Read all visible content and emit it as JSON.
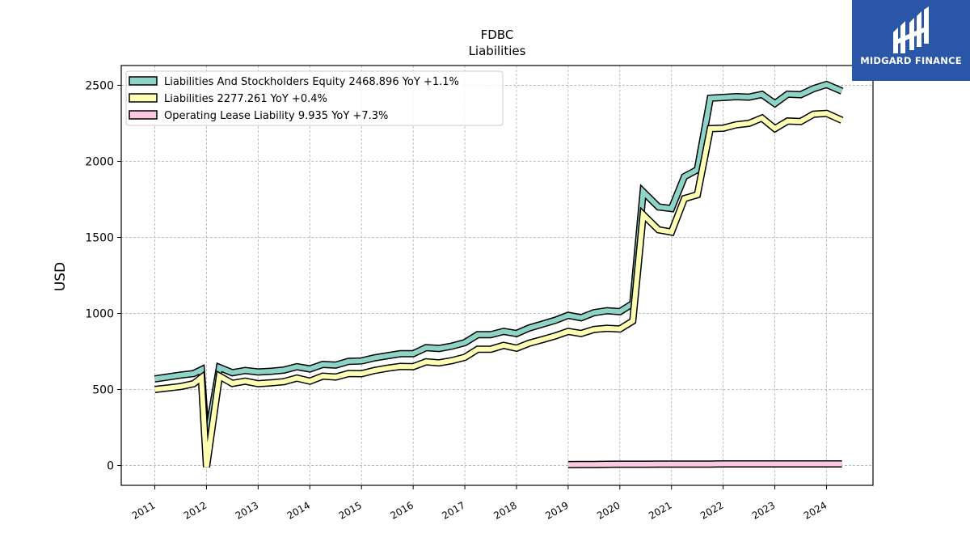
{
  "chart_data": {
    "type": "line",
    "title": "FDBC",
    "subtitle": "Liabilities",
    "ylabel": "USD",
    "xlabel": "",
    "ylim": [
      -130,
      2630
    ],
    "xlim": [
      2010.35,
      2024.9
    ],
    "yticks": [
      0,
      500,
      1000,
      1500,
      2000,
      2500
    ],
    "xticks": [
      "2011",
      "2012",
      "2013",
      "2014",
      "2015",
      "2016",
      "2017",
      "2018",
      "2019",
      "2020",
      "2021",
      "2022",
      "2023",
      "2024"
    ],
    "grid": true,
    "legend_position": "top-left",
    "series": [
      {
        "name": "Liabilities And Stockholders Equity",
        "legend_label": "Liabilities And Stockholders Equity  2468.896 YoY +1.1%",
        "color": "#8dd3c7",
        "points": [
          [
            2011.0,
            570
          ],
          [
            2011.25,
            582
          ],
          [
            2011.5,
            595
          ],
          [
            2011.75,
            605
          ],
          [
            2011.9,
            630
          ],
          [
            2012.0,
            150
          ],
          [
            2012.25,
            645
          ],
          [
            2012.5,
            610
          ],
          [
            2012.75,
            625
          ],
          [
            2013.0,
            615
          ],
          [
            2013.25,
            620
          ],
          [
            2013.5,
            628
          ],
          [
            2013.75,
            650
          ],
          [
            2014.0,
            635
          ],
          [
            2014.25,
            665
          ],
          [
            2014.5,
            660
          ],
          [
            2014.75,
            685
          ],
          [
            2015.0,
            688
          ],
          [
            2015.25,
            708
          ],
          [
            2015.5,
            722
          ],
          [
            2015.75,
            735
          ],
          [
            2016.0,
            735
          ],
          [
            2016.25,
            775
          ],
          [
            2016.5,
            770
          ],
          [
            2016.75,
            785
          ],
          [
            2017.0,
            808
          ],
          [
            2017.25,
            860
          ],
          [
            2017.5,
            860
          ],
          [
            2017.75,
            882
          ],
          [
            2018.0,
            868
          ],
          [
            2018.25,
            905
          ],
          [
            2018.5,
            930
          ],
          [
            2018.75,
            955
          ],
          [
            2019.0,
            988
          ],
          [
            2019.25,
            972
          ],
          [
            2019.5,
            1005
          ],
          [
            2019.75,
            1018
          ],
          [
            2020.0,
            1012
          ],
          [
            2020.25,
            1065
          ],
          [
            2020.45,
            1800
          ],
          [
            2020.75,
            1700
          ],
          [
            2021.0,
            1690
          ],
          [
            2021.25,
            1900
          ],
          [
            2021.5,
            1945
          ],
          [
            2021.75,
            2415
          ],
          [
            2022.0,
            2420
          ],
          [
            2022.25,
            2425
          ],
          [
            2022.5,
            2422
          ],
          [
            2022.75,
            2440
          ],
          [
            2023.0,
            2380
          ],
          [
            2023.25,
            2442
          ],
          [
            2023.5,
            2438
          ],
          [
            2023.75,
            2478
          ],
          [
            2024.0,
            2505
          ],
          [
            2024.3,
            2462
          ]
        ]
      },
      {
        "name": "Liabilities",
        "legend_label": "Liabilities  2277.261 YoY +0.4%",
        "color": "#ffffb3",
        "points": [
          [
            2011.0,
            500
          ],
          [
            2011.25,
            510
          ],
          [
            2011.5,
            520
          ],
          [
            2011.75,
            538
          ],
          [
            2011.9,
            578
          ],
          [
            2012.0,
            -10
          ],
          [
            2012.25,
            588
          ],
          [
            2012.5,
            540
          ],
          [
            2012.75,
            555
          ],
          [
            2013.0,
            538
          ],
          [
            2013.25,
            544
          ],
          [
            2013.5,
            552
          ],
          [
            2013.75,
            575
          ],
          [
            2014.0,
            555
          ],
          [
            2014.25,
            588
          ],
          [
            2014.5,
            582
          ],
          [
            2014.75,
            605
          ],
          [
            2015.0,
            604
          ],
          [
            2015.25,
            625
          ],
          [
            2015.5,
            640
          ],
          [
            2015.75,
            652
          ],
          [
            2016.0,
            650
          ],
          [
            2016.25,
            682
          ],
          [
            2016.5,
            675
          ],
          [
            2016.75,
            690
          ],
          [
            2017.0,
            712
          ],
          [
            2017.25,
            765
          ],
          [
            2017.5,
            765
          ],
          [
            2017.75,
            790
          ],
          [
            2018.0,
            772
          ],
          [
            2018.25,
            805
          ],
          [
            2018.5,
            828
          ],
          [
            2018.75,
            852
          ],
          [
            2019.0,
            882
          ],
          [
            2019.25,
            868
          ],
          [
            2019.5,
            895
          ],
          [
            2019.75,
            902
          ],
          [
            2020.0,
            898
          ],
          [
            2020.25,
            950
          ],
          [
            2020.45,
            1650
          ],
          [
            2020.75,
            1550
          ],
          [
            2021.0,
            1535
          ],
          [
            2021.25,
            1755
          ],
          [
            2021.5,
            1780
          ],
          [
            2021.75,
            2215
          ],
          [
            2022.0,
            2218
          ],
          [
            2022.25,
            2240
          ],
          [
            2022.5,
            2250
          ],
          [
            2022.75,
            2285
          ],
          [
            2023.0,
            2215
          ],
          [
            2023.25,
            2265
          ],
          [
            2023.5,
            2262
          ],
          [
            2023.75,
            2310
          ],
          [
            2024.0,
            2315
          ],
          [
            2024.3,
            2270
          ]
        ]
      },
      {
        "name": "Operating Lease Liability",
        "legend_label": "Operating Lease Liability  9.935 YoY +7.3%",
        "color": "#fbc9df",
        "points": [
          [
            2019.0,
            6
          ],
          [
            2019.25,
            7
          ],
          [
            2019.5,
            7
          ],
          [
            2019.75,
            8
          ],
          [
            2020.0,
            9
          ],
          [
            2020.25,
            9
          ],
          [
            2020.5,
            9
          ],
          [
            2020.75,
            10
          ],
          [
            2021.0,
            10
          ],
          [
            2021.25,
            10
          ],
          [
            2021.5,
            10
          ],
          [
            2021.75,
            10
          ],
          [
            2022.0,
            11
          ],
          [
            2022.25,
            11
          ],
          [
            2022.5,
            11
          ],
          [
            2022.75,
            11
          ],
          [
            2023.0,
            11
          ],
          [
            2023.25,
            11
          ],
          [
            2023.5,
            11
          ],
          [
            2023.75,
            11
          ],
          [
            2024.0,
            11
          ],
          [
            2024.3,
            11
          ]
        ]
      }
    ]
  },
  "logo": {
    "text": "MIDGARD FINANCE",
    "color": "#2a56a8"
  }
}
